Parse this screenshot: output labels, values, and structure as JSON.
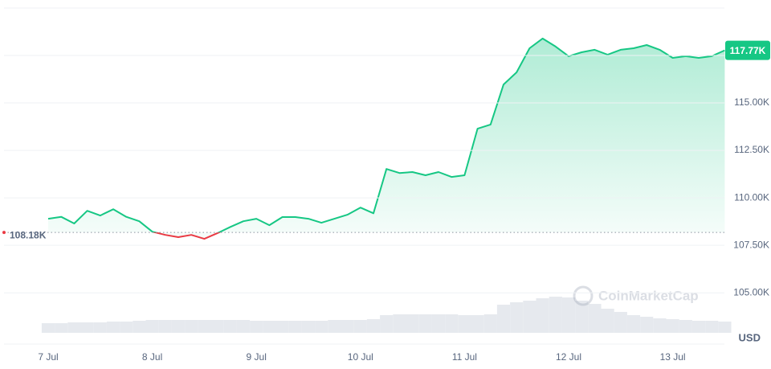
{
  "chart_data": {
    "type": "line",
    "categories": [
      "7 Jul",
      null,
      null,
      null,
      null,
      null,
      null,
      null,
      "8 Jul",
      null,
      null,
      null,
      null,
      null,
      null,
      null,
      "9 Jul",
      null,
      null,
      null,
      null,
      null,
      null,
      null,
      "10 Jul",
      null,
      null,
      null,
      null,
      null,
      null,
      null,
      "11 Jul",
      null,
      null,
      null,
      null,
      null,
      null,
      null,
      "12 Jul",
      null,
      null,
      null,
      null,
      null,
      null,
      null,
      "13 Jul",
      null,
      null,
      null,
      null
    ],
    "series": [
      {
        "name": "Price",
        "color": "#16c784",
        "below_color": "#ea3943",
        "values": [
          108900,
          109000,
          108650,
          109320,
          109070,
          109400,
          109000,
          108770,
          108220,
          108050,
          107930,
          108050,
          107840,
          108140,
          108470,
          108770,
          108900,
          108560,
          108990,
          108990,
          108900,
          108690,
          108900,
          109110,
          109490,
          109190,
          111520,
          111310,
          111360,
          111190,
          111360,
          111100,
          111190,
          113640,
          113860,
          115970,
          116610,
          117880,
          118390,
          117970,
          117460,
          117670,
          117800,
          117540,
          117800,
          117880,
          118050,
          117800,
          117370,
          117460,
          117370,
          117460,
          117770
        ]
      },
      {
        "name": "Volume",
        "color": "#e6e9ee",
        "values": [
          12,
          12,
          13,
          13,
          13,
          14,
          14,
          15,
          16,
          16,
          16,
          16,
          16,
          16,
          16,
          16,
          15,
          15,
          15,
          15,
          15,
          15,
          16,
          16,
          16,
          17,
          22,
          23,
          23,
          23,
          23,
          23,
          22,
          22,
          23,
          35,
          38,
          40,
          43,
          45,
          44,
          40,
          36,
          30,
          26,
          22,
          20,
          18,
          17,
          16,
          15,
          15,
          14
        ]
      }
    ],
    "baseline": {
      "value": 108180,
      "label": "108.18K"
    },
    "current": {
      "value": 117770,
      "label": "117.77K"
    },
    "ylim": [
      102300,
      120420
    ],
    "yticks": [
      {
        "value": 105000,
        "label": "105.00K"
      },
      {
        "value": 107500,
        "label": "107.50K"
      },
      {
        "value": 110000,
        "label": "110.00K"
      },
      {
        "value": 112500,
        "label": "112.50K"
      },
      {
        "value": 115000,
        "label": "115.00K"
      }
    ],
    "currency": "USD",
    "watermark": "CoinMarketCap",
    "grid": true
  }
}
